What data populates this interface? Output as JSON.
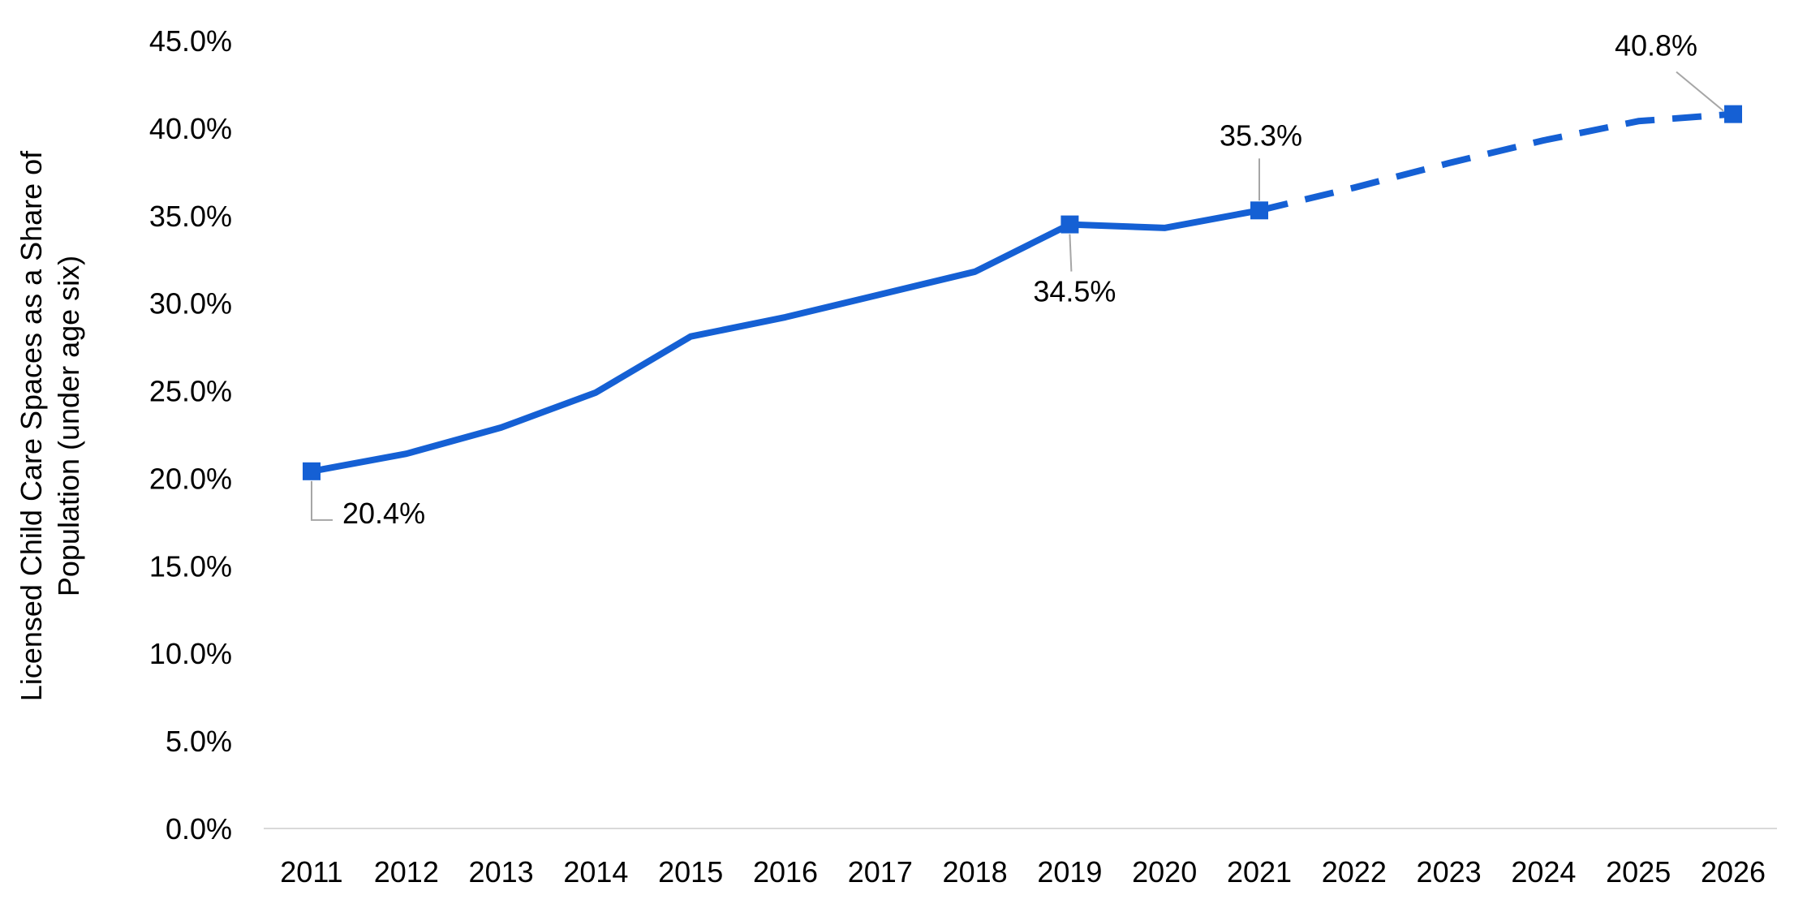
{
  "chart_data": {
    "type": "line",
    "title": "",
    "xlabel": "",
    "ylabel": "Licensed Child Care Spaces as a Share of Population (under age six)",
    "ylabel_lines": [
      "Licensed Child Care Spaces as a Share of",
      "Population (under age six)"
    ],
    "categories": [
      "2011",
      "2012",
      "2013",
      "2014",
      "2015",
      "2016",
      "2017",
      "2018",
      "2019",
      "2020",
      "2021",
      "2022",
      "2023",
      "2024",
      "2025",
      "2026"
    ],
    "ylim": [
      0,
      45
    ],
    "yticks": [
      0,
      5,
      10,
      15,
      20,
      25,
      30,
      35,
      40,
      45
    ],
    "ytick_labels": [
      "0.0%",
      "5.0%",
      "10.0%",
      "15.0%",
      "20.0%",
      "25.0%",
      "30.0%",
      "35.0%",
      "40.0%",
      "45.0%"
    ],
    "grid": false,
    "legend": "none",
    "series": [
      {
        "style": "solid",
        "values": [
          20.4,
          21.4,
          22.9,
          24.9,
          28.1,
          29.2,
          30.5,
          31.8,
          34.5,
          34.3,
          35.3,
          null,
          null,
          null,
          null,
          null
        ]
      },
      {
        "style": "dashed",
        "values": [
          null,
          null,
          null,
          null,
          null,
          null,
          null,
          null,
          null,
          null,
          35.3,
          36.6,
          38.0,
          39.3,
          40.4,
          40.8
        ]
      }
    ],
    "markers": [
      {
        "category": "2011",
        "value": 20.4,
        "label": "20.4%"
      },
      {
        "category": "2019",
        "value": 34.5,
        "label": "34.5%"
      },
      {
        "category": "2021",
        "value": 35.3,
        "label": "35.3%"
      },
      {
        "category": "2026",
        "value": 40.8,
        "label": "40.8%"
      }
    ],
    "colors": {
      "line": "#1560d4",
      "axis": "#d9d9d9",
      "leader": "#a6a6a6",
      "text": "#000000"
    }
  }
}
